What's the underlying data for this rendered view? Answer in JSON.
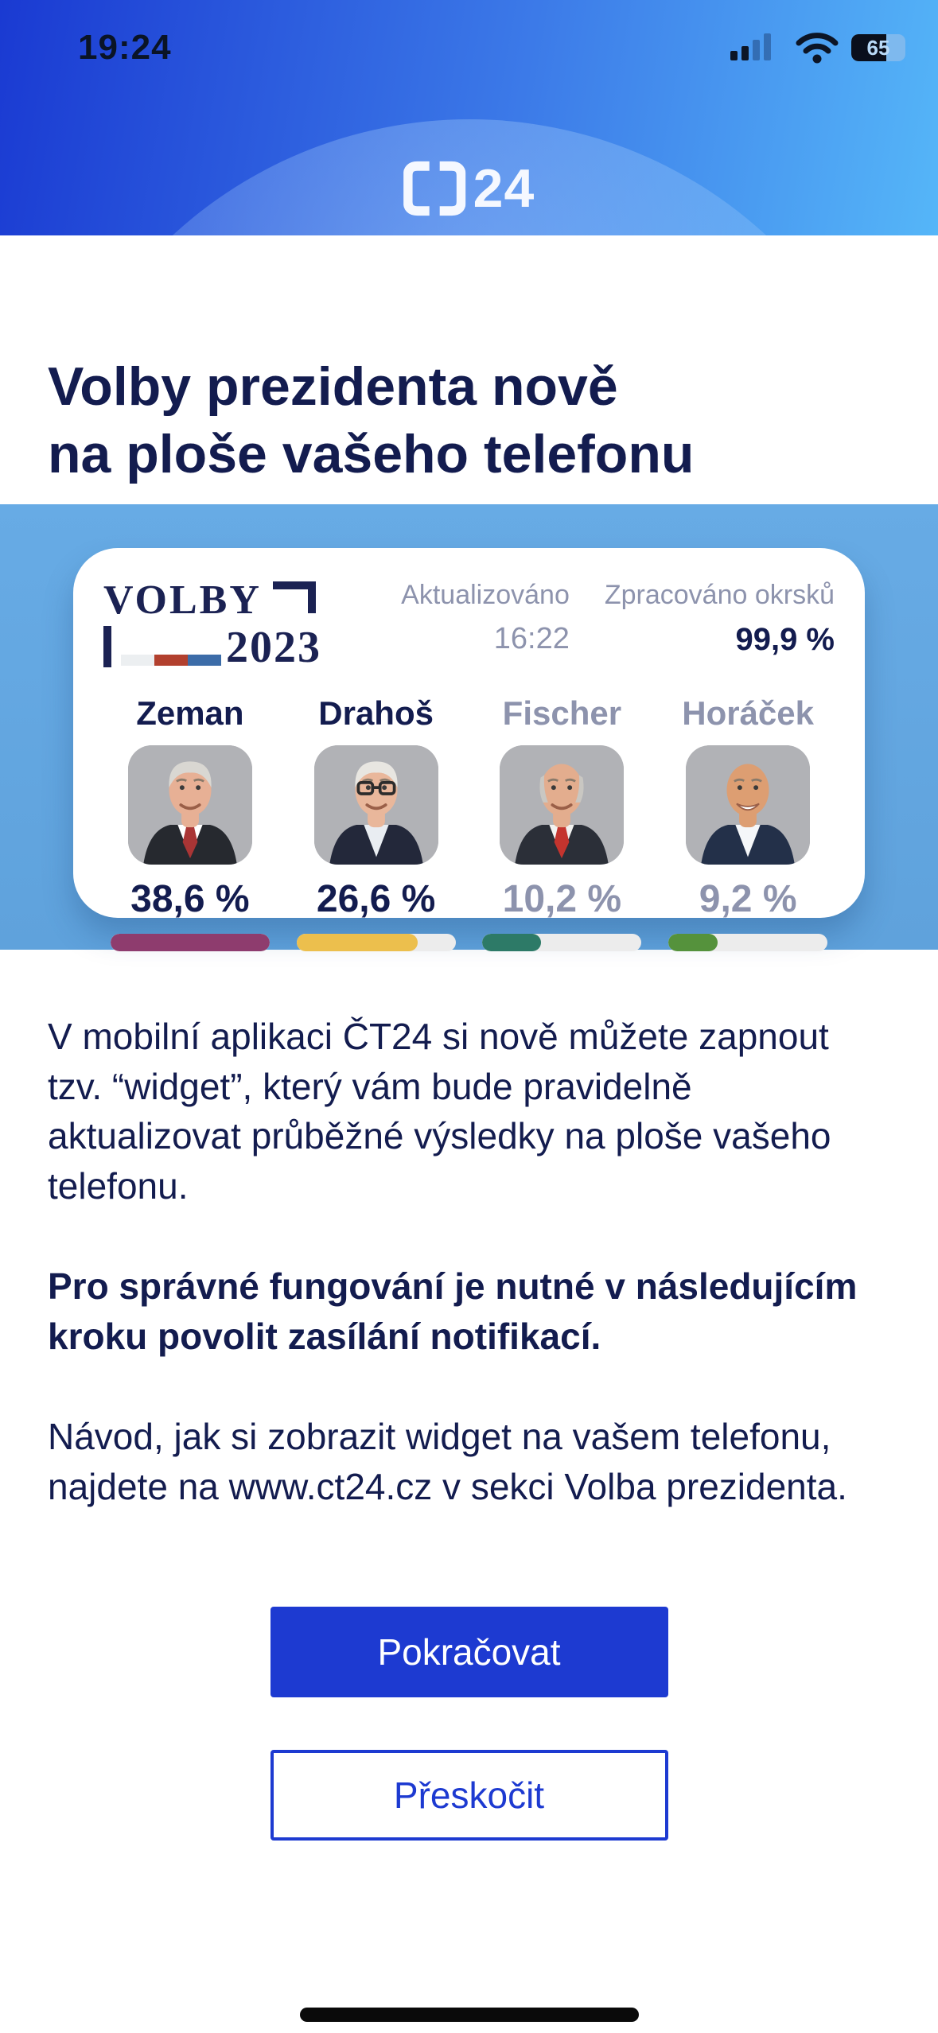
{
  "status_bar": {
    "time": "19:24",
    "battery_percent": 65,
    "battery_label": "65"
  },
  "header": {
    "logo_text": "24"
  },
  "page": {
    "title_line1": "Volby prezidenta nově",
    "title_line2": "na ploše vašeho telefonu"
  },
  "widget": {
    "logo": {
      "word": "VOLBY",
      "year": "2023"
    },
    "updated_label": "Aktualizováno",
    "updated_value": "16:22",
    "processed_label": "Zpracováno okrsků",
    "processed_value": "99,9 %",
    "candidates": [
      {
        "name": "Zeman",
        "percent": "38,6 %",
        "value": 38.6,
        "bar_fill_percent": 100,
        "bar_color": "#8e3c6e",
        "emphasized": true,
        "avatar": {
          "skin": "#e7b095",
          "hair": "full",
          "hair_color": "#d9d7d2",
          "suit": "#26292f",
          "shirt": "#ffffff",
          "tie": "#a93535",
          "glasses": false,
          "big_smile": false
        }
      },
      {
        "name": "Drahoš",
        "percent": "26,6 %",
        "value": 26.6,
        "bar_fill_percent": 76,
        "bar_color": "#ecbf4d",
        "emphasized": true,
        "avatar": {
          "skin": "#e9b79b",
          "hair": "full",
          "hair_color": "#e8e6e1",
          "suit": "#23283a",
          "shirt": "#e9edf2",
          "tie": null,
          "glasses": true,
          "big_smile": false
        }
      },
      {
        "name": "Fischer",
        "percent": "10,2 %",
        "value": 10.2,
        "bar_fill_percent": 37,
        "bar_color": "#2d7a67",
        "emphasized": false,
        "avatar": {
          "skin": "#e3ad8e",
          "hair": "side",
          "hair_color": "#c9c7c2",
          "suit": "#2b2f38",
          "shirt": "#f2f2f0",
          "tie": "#c4342e",
          "glasses": false,
          "big_smile": false
        }
      },
      {
        "name": "Horáček",
        "percent": "9,2 %",
        "value": 9.2,
        "bar_fill_percent": 31,
        "bar_color": "#55923c",
        "emphasized": false,
        "avatar": {
          "skin": "#dd9e72",
          "hair": "bald",
          "hair_color": "#cfcdc8",
          "suit": "#233049",
          "shirt": "#f5f7f9",
          "tie": null,
          "glasses": false,
          "big_smile": true
        }
      }
    ]
  },
  "body": {
    "p1": "V mobilní aplikaci ČT24 si nově můžete zapnout tzv. “widget”, který vám bude pravidelně aktualizovat průběžné výsledky na ploše vašeho telefonu.",
    "p2": "Pro správné fungování je nutné v následujícím kroku povolit zasílání notifikací.",
    "p3": "Návod, jak si zobrazit widget na vašem telefonu, najdete na www.ct24.cz v sekci Volba prezidenta."
  },
  "buttons": {
    "continue": "Pokračovat",
    "skip": "Přeskočit"
  }
}
